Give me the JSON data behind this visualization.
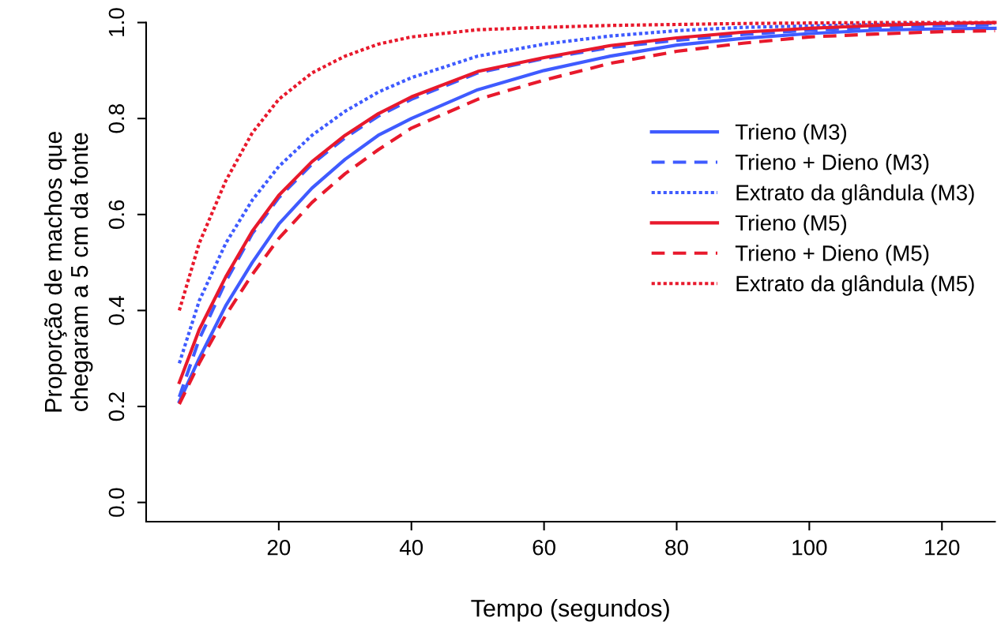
{
  "chart_data": {
    "type": "line",
    "xlabel": "Tempo (segundos)",
    "ylabel": "Proporção de machos que\nchegaram a 5 cm da fonte",
    "x": [
      5,
      8,
      12,
      16,
      20,
      25,
      30,
      35,
      40,
      50,
      60,
      70,
      80,
      90,
      100,
      110,
      120,
      128
    ],
    "series": [
      {
        "name": "Trieno (M3)",
        "color": "#3f5bff",
        "line_style": "solid",
        "values": [
          0.21,
          0.3,
          0.41,
          0.5,
          0.58,
          0.655,
          0.715,
          0.765,
          0.8,
          0.86,
          0.9,
          0.93,
          0.953,
          0.967,
          0.977,
          0.984,
          0.987,
          0.988
        ]
      },
      {
        "name": "Trieno + Dieno (M3)",
        "color": "#3f5bff",
        "line_style": "dashed",
        "values": [
          0.22,
          0.34,
          0.46,
          0.56,
          0.635,
          0.705,
          0.76,
          0.805,
          0.84,
          0.895,
          0.925,
          0.948,
          0.963,
          0.975,
          0.984,
          0.99,
          0.994,
          0.995
        ]
      },
      {
        "name": "Extrato da glândula (M3)",
        "color": "#3f5bff",
        "line_style": "dotted",
        "values": [
          0.29,
          0.42,
          0.54,
          0.63,
          0.7,
          0.765,
          0.815,
          0.855,
          0.885,
          0.93,
          0.955,
          0.972,
          0.983,
          0.99,
          0.993,
          0.996,
          0.998,
          0.998
        ]
      },
      {
        "name": "Trieno (M5)",
        "color": "#e8192c",
        "line_style": "solid",
        "values": [
          0.25,
          0.36,
          0.47,
          0.565,
          0.64,
          0.71,
          0.765,
          0.81,
          0.845,
          0.898,
          0.927,
          0.952,
          0.968,
          0.98,
          0.988,
          0.994,
          0.998,
          1.0
        ]
      },
      {
        "name": "Trieno + Dieno (M5)",
        "color": "#e8192c",
        "line_style": "dashed",
        "values": [
          0.205,
          0.29,
          0.39,
          0.475,
          0.55,
          0.625,
          0.685,
          0.735,
          0.78,
          0.84,
          0.88,
          0.915,
          0.94,
          0.957,
          0.97,
          0.976,
          0.981,
          0.983
        ]
      },
      {
        "name": "Extrato da glândula (M5)",
        "color": "#e8192c",
        "line_style": "dotted",
        "values": [
          0.4,
          0.54,
          0.67,
          0.77,
          0.84,
          0.895,
          0.93,
          0.955,
          0.97,
          0.985,
          0.99,
          0.994,
          0.996,
          0.998,
          0.999,
          1.0,
          1.0,
          1.0
        ]
      }
    ],
    "xlim": [
      0,
      128
    ],
    "ylim": [
      -0.04,
      1.0
    ],
    "xticks": [
      20,
      40,
      60,
      80,
      100,
      120
    ],
    "yticks": [
      {
        "value": 0,
        "label": "0.0"
      },
      {
        "value": 0.2,
        "label": "0.2"
      },
      {
        "value": 0.4,
        "label": "0.4"
      },
      {
        "value": 0.6,
        "label": "0.6"
      },
      {
        "value": 0.8,
        "label": "0.8"
      },
      {
        "value": 1.0,
        "label": "1.0"
      }
    ],
    "grid": false,
    "legend": "right",
    "marker": "none"
  }
}
